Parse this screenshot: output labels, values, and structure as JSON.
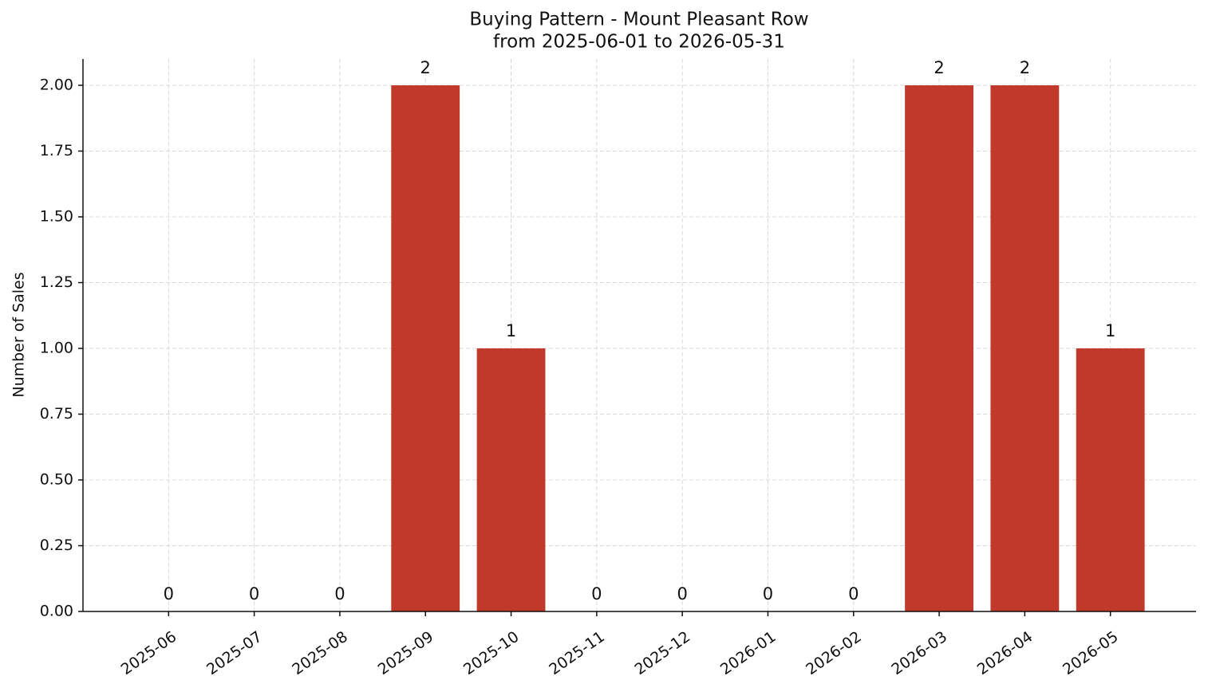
{
  "chart_data": {
    "type": "bar",
    "title": "Buying Pattern - Mount Pleasant Row",
    "subtitle": "from 2025-06-01 to 2026-05-31",
    "y_label": "Number of Sales",
    "categories": [
      "2025-06",
      "2025-07",
      "2025-08",
      "2025-09",
      "2025-10",
      "2025-11",
      "2025-12",
      "2026-01",
      "2026-02",
      "2026-03",
      "2026-04",
      "2026-05"
    ],
    "values": [
      0,
      0,
      0,
      2,
      1,
      0,
      0,
      0,
      0,
      2,
      2,
      1
    ],
    "color": "#c0392b",
    "ylim": [
      0,
      2.1
    ],
    "yticks": [
      {
        "value": 0,
        "label": "0.00"
      },
      {
        "value": 0.25,
        "label": "0.25"
      },
      {
        "value": 0.5,
        "label": "0.50"
      },
      {
        "value": 0.75,
        "label": "0.75"
      },
      {
        "value": 1,
        "label": "1.00"
      },
      {
        "value": 1.25,
        "label": "1.25"
      },
      {
        "value": 1.5,
        "label": "1.50"
      },
      {
        "value": 1.75,
        "label": "1.75"
      },
      {
        "value": 2,
        "label": "2.00"
      }
    ],
    "grid": true
  }
}
